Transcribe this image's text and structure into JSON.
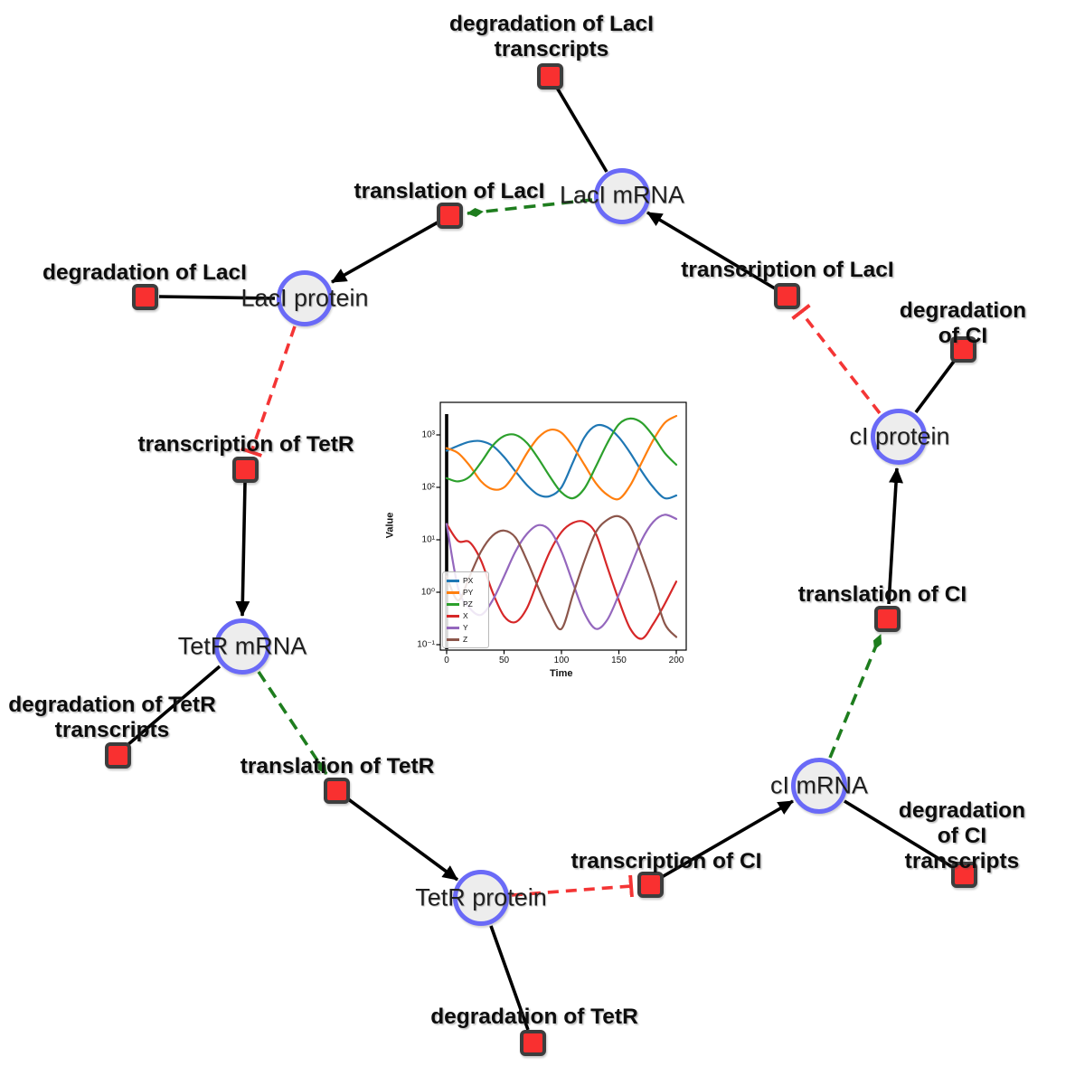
{
  "diagram": {
    "species_nodes": [
      {
        "label": "LacI mRNA"
      },
      {
        "label": "LacI protein"
      },
      {
        "label": "cI protein"
      },
      {
        "label": "TetR mRNA"
      },
      {
        "label": "cI mRNA"
      },
      {
        "label": "TetR protein"
      }
    ],
    "reaction_nodes": [
      {
        "label": "degradation of LacI\ntranscripts"
      },
      {
        "label": "translation of LacI"
      },
      {
        "label": "transcription of LacI"
      },
      {
        "label": "degradation of LacI"
      },
      {
        "label": "degradation of CI"
      },
      {
        "label": "transcription of TetR"
      },
      {
        "label": "translation of CI"
      },
      {
        "label": "degradation of TetR\ntranscripts"
      },
      {
        "label": "translation of TetR"
      },
      {
        "label": "degradation of CI\ntranscripts"
      },
      {
        "label": "transcription of CI"
      },
      {
        "label": "degradation of TetR"
      }
    ],
    "colors": {
      "species_fill": "#ededed",
      "species_border": "#6a6af7",
      "reaction_fill": "#f93030",
      "reaction_border": "#3d3d3d",
      "consumption_edge": "#000000",
      "activation_edge": "#1e7d1e",
      "inhibition_edge": "#f43535"
    }
  },
  "chart_data": {
    "type": "line",
    "title": "",
    "xlabel": "Time",
    "ylabel": "Value",
    "yscale": "log",
    "xlim": [
      0,
      200
    ],
    "ylim": [
      0.08,
      4200
    ],
    "xticks": [
      0,
      50,
      100,
      150,
      200
    ],
    "xtick_labels": [
      "0",
      "50",
      "100",
      "150",
      "200"
    ],
    "ytick_values": [
      0.1,
      1,
      10,
      100,
      1000
    ],
    "ytick_labels": [
      "10⁻¹",
      "10⁰",
      "10¹",
      "10²",
      "10³"
    ],
    "legend_position": "lower left",
    "grid": false,
    "vertical_line_x": 0,
    "x": [
      0,
      10,
      20,
      30,
      40,
      50,
      60,
      70,
      80,
      90,
      100,
      110,
      120,
      130,
      140,
      150,
      160,
      170,
      180,
      190,
      200
    ],
    "series": [
      {
        "name": "PX",
        "color": "#1f77b4",
        "values": [
          500,
          620,
          740,
          760,
          620,
          380,
          200,
          110,
          72,
          68,
          100,
          300,
          900,
          1500,
          1400,
          900,
          450,
          200,
          100,
          62,
          70
        ]
      },
      {
        "name": "PY",
        "color": "#ff7f0e",
        "values": [
          560,
          450,
          260,
          130,
          92,
          100,
          190,
          450,
          900,
          1250,
          1100,
          600,
          270,
          120,
          72,
          60,
          110,
          300,
          800,
          1700,
          2300
        ]
      },
      {
        "name": "PZ",
        "color": "#2ca02c",
        "values": [
          150,
          130,
          160,
          300,
          620,
          950,
          1000,
          700,
          350,
          160,
          80,
          62,
          95,
          250,
          700,
          1600,
          2050,
          1700,
          950,
          450,
          270
        ]
      },
      {
        "name": "X",
        "color": "#d62728",
        "values": [
          20,
          9.5,
          9,
          4,
          1,
          0.35,
          0.27,
          0.5,
          1.8,
          6,
          14,
          21,
          22,
          13,
          3,
          0.7,
          0.2,
          0.13,
          0.25,
          0.6,
          1.6
        ]
      },
      {
        "name": "Y",
        "color": "#9467bd",
        "values": [
          20,
          1.2,
          0.5,
          0.37,
          0.7,
          2,
          6,
          13,
          19,
          15,
          6,
          1.5,
          0.4,
          0.2,
          0.3,
          0.9,
          3,
          10,
          22,
          30,
          25
        ]
      },
      {
        "name": "Z",
        "color": "#8c564b",
        "values": [
          2,
          0.7,
          2,
          6,
          12,
          15,
          11,
          4,
          1.2,
          0.4,
          0.2,
          0.9,
          4,
          14,
          24,
          28,
          18,
          5,
          1.2,
          0.25,
          0.14
        ]
      }
    ]
  }
}
